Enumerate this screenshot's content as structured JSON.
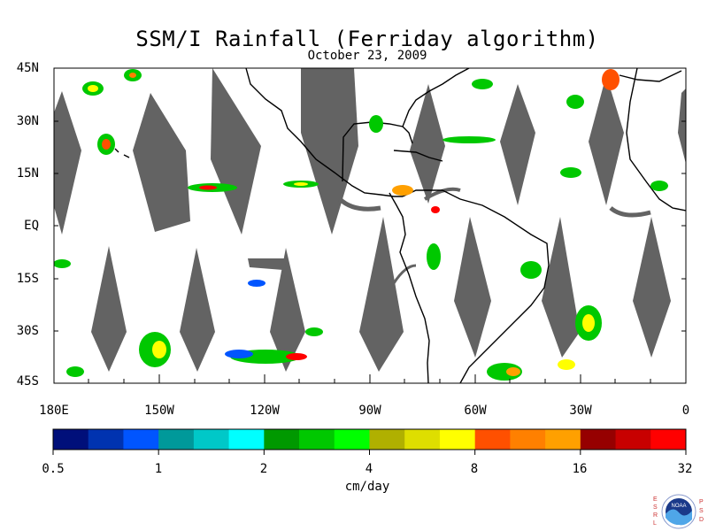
{
  "title": "SSM/I Rainfall (Ferriday algorithm)",
  "date": "October 23, 2009",
  "lat_labels": [
    "45N",
    "30N",
    "15N",
    "EQ",
    "15S",
    "30S",
    "45S"
  ],
  "lon_labels": [
    "180E",
    "150W",
    "120W",
    "90W",
    "60W",
    "30W",
    "0"
  ],
  "colorbar": {
    "colors": [
      "#000f7a",
      "#0033b0",
      "#0055ff",
      "#00999a",
      "#00c8c8",
      "#00ffff",
      "#009900",
      "#00c800",
      "#00ff00",
      "#b0b000",
      "#dede00",
      "#ffff00",
      "#ff5000",
      "#ff8000",
      "#ffa000",
      "#960000",
      "#c80000",
      "#ff0000"
    ],
    "tick_labels": [
      "0.5",
      "1",
      "2",
      "4",
      "8",
      "16",
      "32"
    ],
    "unit": "cm/day"
  },
  "logo": {
    "text": "NOAA",
    "left_letters": "ESRL",
    "right_letters": "PSD"
  },
  "colors": {
    "swath_gap": "#636363",
    "land_outline": "#000000",
    "background": "#ffffff"
  }
}
